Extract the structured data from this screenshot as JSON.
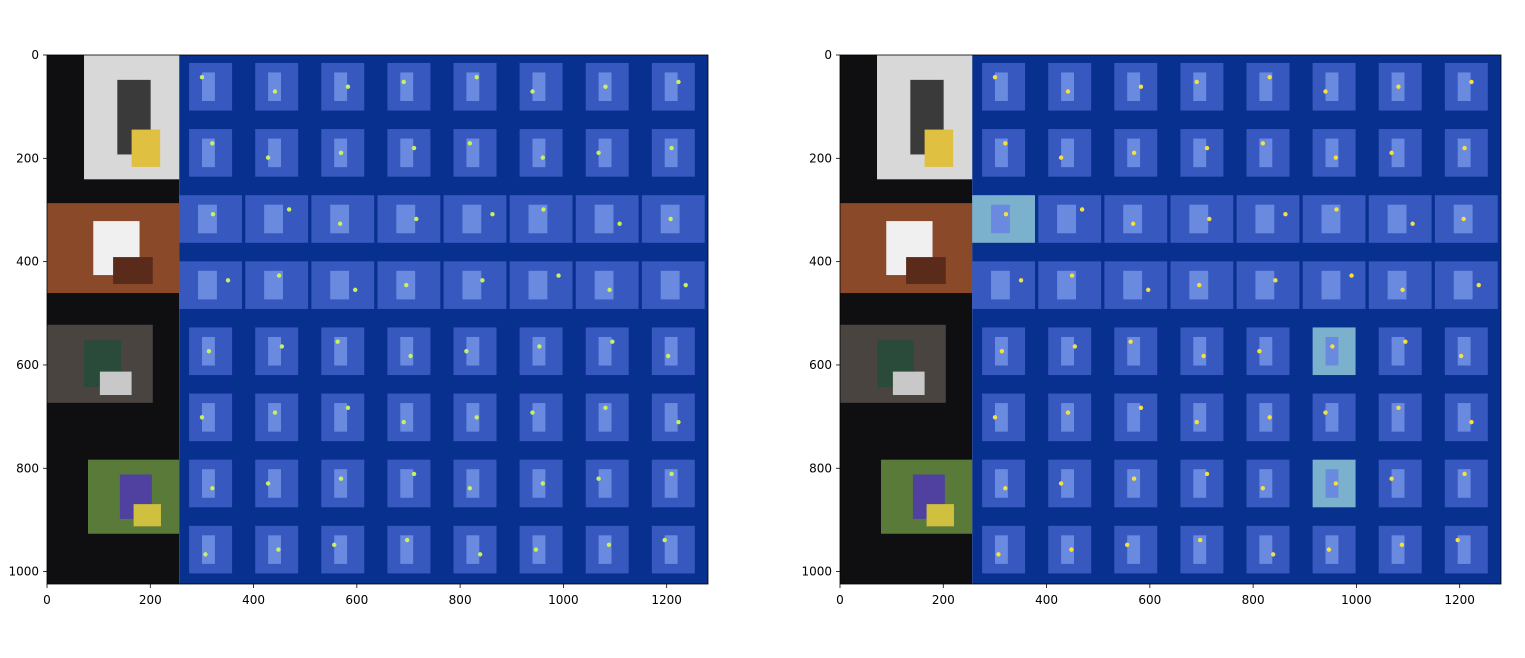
{
  "chart_data": [
    {
      "type": "image",
      "xlim": [
        0,
        1280
      ],
      "ylim": [
        1024,
        0
      ],
      "xticks": [
        0,
        200,
        400,
        600,
        800,
        1000,
        1200
      ],
      "yticks": [
        0,
        200,
        400,
        600,
        800,
        1000
      ]
    },
    {
      "type": "image",
      "xlim": [
        0,
        1280
      ],
      "ylim": [
        1024,
        0
      ],
      "xticks": [
        0,
        200,
        400,
        600,
        800,
        1000,
        1200
      ],
      "yticks": [
        0,
        200,
        400,
        600,
        800,
        1000
      ]
    }
  ]
}
